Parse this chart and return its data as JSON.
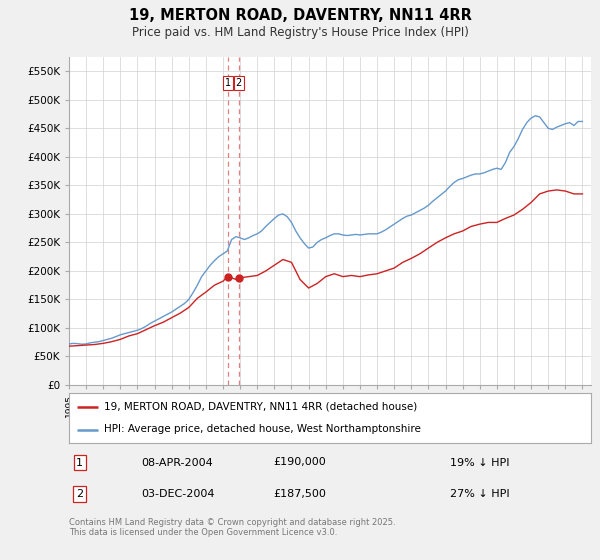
{
  "title": "19, MERTON ROAD, DAVENTRY, NN11 4RR",
  "subtitle": "Price paid vs. HM Land Registry's House Price Index (HPI)",
  "ylabel_ticks": [
    "£0",
    "£50K",
    "£100K",
    "£150K",
    "£200K",
    "£250K",
    "£300K",
    "£350K",
    "£400K",
    "£450K",
    "£500K",
    "£550K"
  ],
  "ytick_values": [
    0,
    50000,
    100000,
    150000,
    200000,
    250000,
    300000,
    350000,
    400000,
    450000,
    500000,
    550000
  ],
  "ylim": [
    0,
    575000
  ],
  "xlim": [
    1995,
    2025.5
  ],
  "bg_color": "#f0f0f0",
  "plot_bg_color": "#ffffff",
  "grid_color": "#d0d0d0",
  "hpi_color": "#6699cc",
  "price_color": "#cc2222",
  "transaction1_x": 2004.27,
  "transaction1_price": 190000,
  "transaction2_x": 2004.92,
  "transaction2_price": 187500,
  "legend_line1": "19, MERTON ROAD, DAVENTRY, NN11 4RR (detached house)",
  "legend_line2": "HPI: Average price, detached house, West Northamptonshire",
  "table_row1": [
    "1",
    "08-APR-2004",
    "£190,000",
    "19% ↓ HPI"
  ],
  "table_row2": [
    "2",
    "03-DEC-2004",
    "£187,500",
    "27% ↓ HPI"
  ],
  "footer": "Contains HM Land Registry data © Crown copyright and database right 2025.\nThis data is licensed under the Open Government Licence v3.0.",
  "hpi_data": [
    [
      1995.0,
      72000
    ],
    [
      1995.25,
      73000
    ],
    [
      1995.5,
      72500
    ],
    [
      1995.75,
      71500
    ],
    [
      1996.0,
      72000
    ],
    [
      1996.25,
      74000
    ],
    [
      1996.5,
      75000
    ],
    [
      1996.75,
      76000
    ],
    [
      1997.0,
      78000
    ],
    [
      1997.25,
      80000
    ],
    [
      1997.5,
      82000
    ],
    [
      1997.75,
      85000
    ],
    [
      1998.0,
      88000
    ],
    [
      1998.25,
      90000
    ],
    [
      1998.5,
      92000
    ],
    [
      1998.75,
      94000
    ],
    [
      1999.0,
      96000
    ],
    [
      1999.25,
      99000
    ],
    [
      1999.5,
      103000
    ],
    [
      1999.75,
      108000
    ],
    [
      2000.0,
      112000
    ],
    [
      2000.25,
      116000
    ],
    [
      2000.5,
      120000
    ],
    [
      2000.75,
      124000
    ],
    [
      2001.0,
      128000
    ],
    [
      2001.25,
      133000
    ],
    [
      2001.5,
      138000
    ],
    [
      2001.75,
      143000
    ],
    [
      2002.0,
      150000
    ],
    [
      2002.25,
      162000
    ],
    [
      2002.5,
      175000
    ],
    [
      2002.75,
      190000
    ],
    [
      2003.0,
      200000
    ],
    [
      2003.25,
      210000
    ],
    [
      2003.5,
      218000
    ],
    [
      2003.75,
      225000
    ],
    [
      2004.0,
      230000
    ],
    [
      2004.25,
      235000
    ],
    [
      2004.5,
      255000
    ],
    [
      2004.75,
      260000
    ],
    [
      2005.0,
      258000
    ],
    [
      2005.25,
      255000
    ],
    [
      2005.5,
      258000
    ],
    [
      2005.75,
      262000
    ],
    [
      2006.0,
      265000
    ],
    [
      2006.25,
      270000
    ],
    [
      2006.5,
      278000
    ],
    [
      2006.75,
      285000
    ],
    [
      2007.0,
      292000
    ],
    [
      2007.25,
      298000
    ],
    [
      2007.5,
      300000
    ],
    [
      2007.75,
      295000
    ],
    [
      2008.0,
      285000
    ],
    [
      2008.25,
      270000
    ],
    [
      2008.5,
      258000
    ],
    [
      2008.75,
      248000
    ],
    [
      2009.0,
      240000
    ],
    [
      2009.25,
      242000
    ],
    [
      2009.5,
      250000
    ],
    [
      2009.75,
      255000
    ],
    [
      2010.0,
      258000
    ],
    [
      2010.25,
      262000
    ],
    [
      2010.5,
      265000
    ],
    [
      2010.75,
      265000
    ],
    [
      2011.0,
      263000
    ],
    [
      2011.25,
      262000
    ],
    [
      2011.5,
      263000
    ],
    [
      2011.75,
      264000
    ],
    [
      2012.0,
      263000
    ],
    [
      2012.25,
      264000
    ],
    [
      2012.5,
      265000
    ],
    [
      2012.75,
      265000
    ],
    [
      2013.0,
      265000
    ],
    [
      2013.25,
      268000
    ],
    [
      2013.5,
      272000
    ],
    [
      2013.75,
      277000
    ],
    [
      2014.0,
      282000
    ],
    [
      2014.25,
      287000
    ],
    [
      2014.5,
      292000
    ],
    [
      2014.75,
      296000
    ],
    [
      2015.0,
      298000
    ],
    [
      2015.25,
      302000
    ],
    [
      2015.5,
      306000
    ],
    [
      2015.75,
      310000
    ],
    [
      2016.0,
      315000
    ],
    [
      2016.25,
      322000
    ],
    [
      2016.5,
      328000
    ],
    [
      2016.75,
      334000
    ],
    [
      2017.0,
      340000
    ],
    [
      2017.25,
      348000
    ],
    [
      2017.5,
      355000
    ],
    [
      2017.75,
      360000
    ],
    [
      2018.0,
      362000
    ],
    [
      2018.25,
      365000
    ],
    [
      2018.5,
      368000
    ],
    [
      2018.75,
      370000
    ],
    [
      2019.0,
      370000
    ],
    [
      2019.25,
      372000
    ],
    [
      2019.5,
      375000
    ],
    [
      2019.75,
      378000
    ],
    [
      2020.0,
      380000
    ],
    [
      2020.25,
      378000
    ],
    [
      2020.5,
      390000
    ],
    [
      2020.75,
      408000
    ],
    [
      2021.0,
      418000
    ],
    [
      2021.25,
      432000
    ],
    [
      2021.5,
      448000
    ],
    [
      2021.75,
      460000
    ],
    [
      2022.0,
      468000
    ],
    [
      2022.25,
      472000
    ],
    [
      2022.5,
      470000
    ],
    [
      2022.75,
      460000
    ],
    [
      2023.0,
      450000
    ],
    [
      2023.25,
      448000
    ],
    [
      2023.5,
      452000
    ],
    [
      2023.75,
      455000
    ],
    [
      2024.0,
      458000
    ],
    [
      2024.25,
      460000
    ],
    [
      2024.5,
      455000
    ],
    [
      2024.75,
      462000
    ],
    [
      2025.0,
      462000
    ]
  ],
  "price_data": [
    [
      1995.0,
      68000
    ],
    [
      1995.5,
      69000
    ],
    [
      1996.0,
      70000
    ],
    [
      1996.5,
      71000
    ],
    [
      1997.0,
      73000
    ],
    [
      1997.5,
      76000
    ],
    [
      1998.0,
      80000
    ],
    [
      1998.5,
      86000
    ],
    [
      1999.0,
      90000
    ],
    [
      1999.5,
      97000
    ],
    [
      2000.0,
      104000
    ],
    [
      2000.5,
      110000
    ],
    [
      2001.0,
      118000
    ],
    [
      2001.5,
      126000
    ],
    [
      2002.0,
      136000
    ],
    [
      2002.5,
      152000
    ],
    [
      2003.0,
      163000
    ],
    [
      2003.5,
      175000
    ],
    [
      2004.0,
      182000
    ],
    [
      2004.27,
      190000
    ],
    [
      2004.5,
      188000
    ],
    [
      2004.75,
      185000
    ],
    [
      2004.92,
      187500
    ],
    [
      2005.0,
      188000
    ],
    [
      2005.5,
      190000
    ],
    [
      2006.0,
      192000
    ],
    [
      2006.5,
      200000
    ],
    [
      2007.0,
      210000
    ],
    [
      2007.5,
      220000
    ],
    [
      2008.0,
      215000
    ],
    [
      2008.5,
      185000
    ],
    [
      2009.0,
      170000
    ],
    [
      2009.5,
      178000
    ],
    [
      2010.0,
      190000
    ],
    [
      2010.5,
      195000
    ],
    [
      2011.0,
      190000
    ],
    [
      2011.5,
      192000
    ],
    [
      2012.0,
      190000
    ],
    [
      2012.5,
      193000
    ],
    [
      2013.0,
      195000
    ],
    [
      2013.5,
      200000
    ],
    [
      2014.0,
      205000
    ],
    [
      2014.5,
      215000
    ],
    [
      2015.0,
      222000
    ],
    [
      2015.5,
      230000
    ],
    [
      2016.0,
      240000
    ],
    [
      2016.5,
      250000
    ],
    [
      2017.0,
      258000
    ],
    [
      2017.5,
      265000
    ],
    [
      2018.0,
      270000
    ],
    [
      2018.5,
      278000
    ],
    [
      2019.0,
      282000
    ],
    [
      2019.5,
      285000
    ],
    [
      2020.0,
      285000
    ],
    [
      2020.5,
      292000
    ],
    [
      2021.0,
      298000
    ],
    [
      2021.5,
      308000
    ],
    [
      2022.0,
      320000
    ],
    [
      2022.5,
      335000
    ],
    [
      2023.0,
      340000
    ],
    [
      2023.5,
      342000
    ],
    [
      2024.0,
      340000
    ],
    [
      2024.5,
      335000
    ],
    [
      2025.0,
      335000
    ]
  ]
}
